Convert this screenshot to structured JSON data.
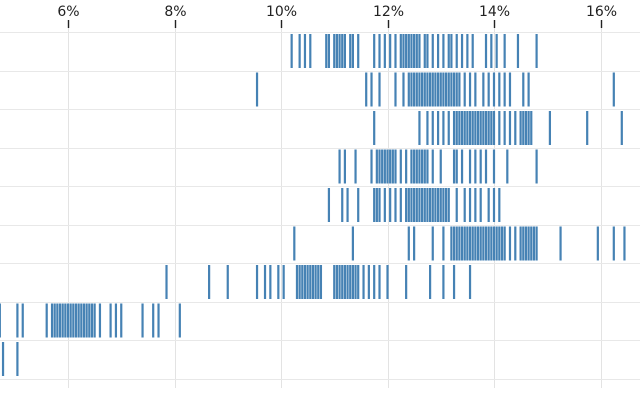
{
  "chart_data": {
    "type": "strip",
    "title": "",
    "xlabel": "",
    "ylabel": "",
    "x_axis_position": "top",
    "x_ticks": [
      6,
      8,
      10,
      12,
      14,
      16
    ],
    "x_tick_labels": [
      "6%",
      "8%",
      "10%",
      "12%",
      "14%",
      "16%"
    ],
    "xlim": [
      4.7,
      16.75
    ],
    "grid": true,
    "mark_color": "#4682b4",
    "series": [
      {
        "values": [
          10.2,
          10.35,
          10.45,
          10.55,
          10.85,
          10.9,
          11.0,
          11.05,
          11.1,
          11.15,
          11.2,
          11.3,
          11.35,
          11.45,
          11.75,
          11.85,
          11.95,
          12.05,
          12.15,
          12.25,
          12.3,
          12.35,
          12.4,
          12.45,
          12.5,
          12.55,
          12.6,
          12.7,
          12.75,
          12.85,
          12.95,
          13.05,
          13.15,
          13.2,
          13.3,
          13.4,
          13.5,
          13.6,
          13.85,
          13.95,
          14.05,
          14.2,
          14.45,
          14.8
        ]
      },
      {
        "values": [
          9.55,
          11.6,
          11.7,
          11.85,
          12.15,
          12.3,
          12.4,
          12.45,
          12.5,
          12.55,
          12.6,
          12.65,
          12.7,
          12.75,
          12.8,
          12.85,
          12.9,
          12.95,
          13.0,
          13.05,
          13.1,
          13.15,
          13.2,
          13.25,
          13.3,
          13.35,
          13.45,
          13.55,
          13.65,
          13.8,
          13.9,
          14.0,
          14.1,
          14.2,
          14.3,
          14.55,
          14.65,
          16.25
        ]
      },
      {
        "values": [
          11.75,
          12.6,
          12.75,
          12.85,
          12.95,
          13.05,
          13.15,
          13.25,
          13.3,
          13.35,
          13.4,
          13.45,
          13.5,
          13.55,
          13.6,
          13.65,
          13.7,
          13.75,
          13.8,
          13.85,
          13.9,
          13.95,
          14.0,
          14.1,
          14.2,
          14.3,
          14.4,
          14.5,
          14.55,
          14.6,
          14.65,
          14.7,
          15.05,
          15.75,
          16.4
        ]
      },
      {
        "values": [
          11.1,
          11.2,
          11.4,
          11.7,
          11.8,
          11.85,
          11.9,
          11.95,
          12.0,
          12.05,
          12.1,
          12.15,
          12.25,
          12.35,
          12.45,
          12.5,
          12.55,
          12.6,
          12.65,
          12.7,
          12.75,
          12.85,
          13.0,
          13.25,
          13.3,
          13.4,
          13.55,
          13.65,
          13.75,
          13.85,
          14.0,
          14.25,
          14.8
        ]
      },
      {
        "values": [
          10.9,
          11.15,
          11.25,
          11.45,
          11.75,
          11.8,
          11.85,
          11.95,
          12.05,
          12.15,
          12.25,
          12.35,
          12.4,
          12.45,
          12.5,
          12.55,
          12.6,
          12.65,
          12.7,
          12.75,
          12.8,
          12.85,
          12.9,
          12.95,
          13.0,
          13.05,
          13.1,
          13.15,
          13.3,
          13.45,
          13.55,
          13.65,
          13.75,
          13.9,
          14.0,
          14.1
        ]
      },
      {
        "values": [
          10.25,
          11.35,
          12.4,
          12.5,
          12.85,
          13.05,
          13.2,
          13.25,
          13.3,
          13.35,
          13.4,
          13.45,
          13.5,
          13.55,
          13.6,
          13.65,
          13.7,
          13.75,
          13.8,
          13.85,
          13.9,
          13.95,
          14.0,
          14.05,
          14.1,
          14.15,
          14.2,
          14.3,
          14.4,
          14.5,
          14.55,
          14.6,
          14.65,
          14.7,
          14.75,
          14.8,
          15.25,
          15.95,
          16.25,
          16.45
        ]
      },
      {
        "values": [
          7.85,
          8.65,
          9.0,
          9.55,
          9.7,
          9.8,
          9.95,
          10.05,
          10.3,
          10.35,
          10.4,
          10.45,
          10.5,
          10.55,
          10.6,
          10.65,
          10.7,
          10.75,
          11.0,
          11.05,
          11.1,
          11.15,
          11.2,
          11.25,
          11.3,
          11.35,
          11.4,
          11.45,
          11.55,
          11.65,
          11.75,
          11.85,
          12.0,
          12.35,
          12.8,
          13.05,
          13.25,
          13.55
        ]
      },
      {
        "values": [
          4.72,
          5.05,
          5.15,
          5.6,
          5.7,
          5.75,
          5.8,
          5.85,
          5.9,
          5.95,
          6.0,
          6.05,
          6.1,
          6.15,
          6.2,
          6.25,
          6.3,
          6.35,
          6.4,
          6.45,
          6.5,
          6.6,
          6.8,
          6.9,
          7.0,
          7.4,
          7.6,
          7.7,
          8.1
        ]
      },
      {
        "values": [
          4.78,
          5.05
        ]
      }
    ]
  }
}
